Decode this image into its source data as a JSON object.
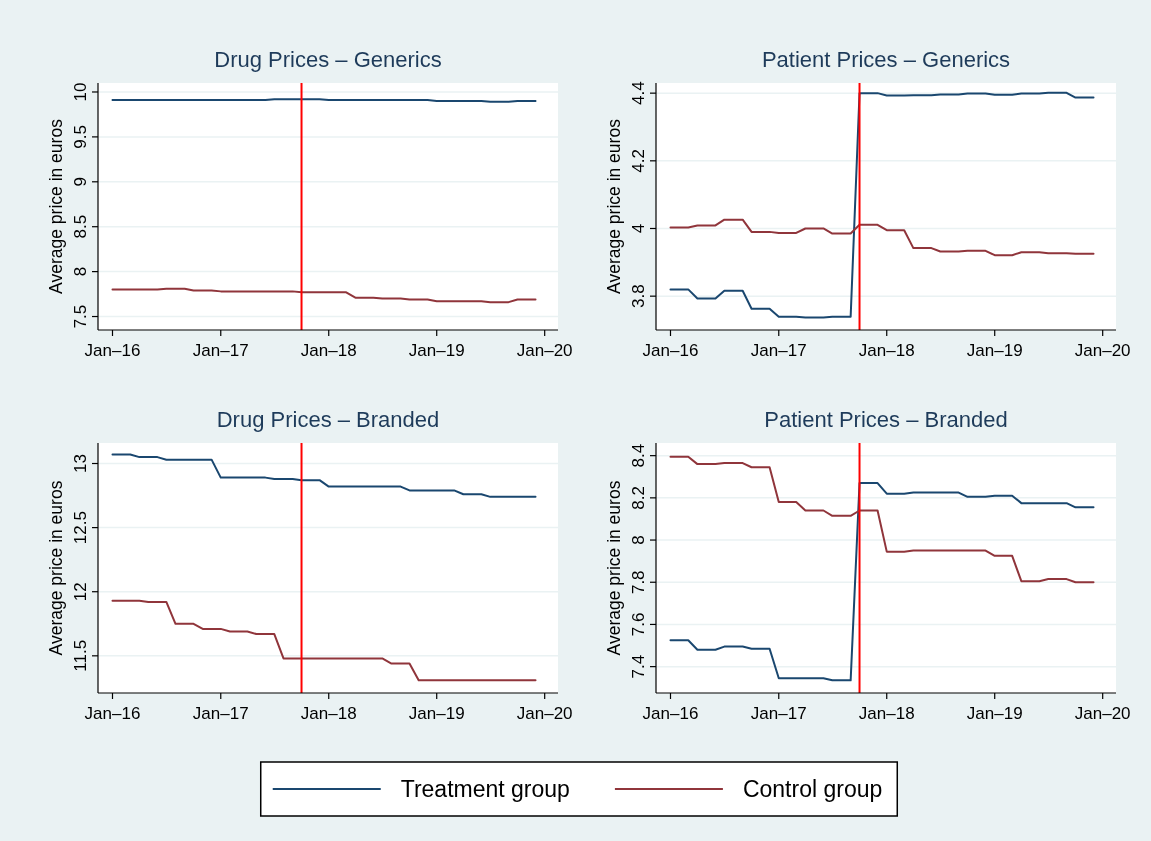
{
  "chart_data": [
    {
      "type": "line",
      "title": "Drug Prices – Generics",
      "ylabel": "Average price in euros",
      "x": [
        "2016-01",
        "2016-02",
        "2016-03",
        "2016-04",
        "2016-05",
        "2016-06",
        "2016-07",
        "2016-08",
        "2016-09",
        "2016-10",
        "2016-11",
        "2016-12",
        "2017-01",
        "2017-02",
        "2017-03",
        "2017-04",
        "2017-05",
        "2017-06",
        "2017-07",
        "2017-08",
        "2017-09",
        "2017-10",
        "2017-11",
        "2017-12",
        "2018-01",
        "2018-02",
        "2018-03",
        "2018-04",
        "2018-05",
        "2018-06",
        "2018-07",
        "2018-08",
        "2018-09",
        "2018-10",
        "2018-11",
        "2018-12",
        "2019-01",
        "2019-02",
        "2019-03",
        "2019-04",
        "2019-05",
        "2019-06",
        "2019-07",
        "2019-08",
        "2019-09",
        "2019-10",
        "2019-11",
        "2019-12"
      ],
      "series": [
        {
          "color": "#1a476f",
          "values": [
            9.91,
            9.91,
            9.91,
            9.91,
            9.91,
            9.91,
            9.91,
            9.91,
            9.91,
            9.91,
            9.91,
            9.91,
            9.91,
            9.91,
            9.91,
            9.91,
            9.91,
            9.91,
            9.92,
            9.92,
            9.92,
            9.92,
            9.92,
            9.92,
            9.91,
            9.91,
            9.91,
            9.91,
            9.91,
            9.91,
            9.91,
            9.91,
            9.91,
            9.91,
            9.91,
            9.91,
            9.9,
            9.9,
            9.9,
            9.9,
            9.9,
            9.9,
            9.89,
            9.89,
            9.89,
            9.9,
            9.9,
            9.9
          ]
        },
        {
          "color": "#90353b",
          "values": [
            7.8,
            7.8,
            7.8,
            7.8,
            7.8,
            7.8,
            7.81,
            7.81,
            7.81,
            7.79,
            7.79,
            7.79,
            7.78,
            7.78,
            7.78,
            7.78,
            7.78,
            7.78,
            7.78,
            7.78,
            7.78,
            7.77,
            7.77,
            7.77,
            7.77,
            7.77,
            7.77,
            7.71,
            7.71,
            7.71,
            7.7,
            7.7,
            7.7,
            7.69,
            7.69,
            7.69,
            7.67,
            7.67,
            7.67,
            7.67,
            7.67,
            7.67,
            7.66,
            7.66,
            7.66,
            7.69,
            7.69,
            7.69
          ]
        }
      ],
      "xlim": [
        "2015-11-13",
        "2020-02-15"
      ],
      "xticks": [
        {
          "value": "2016-01",
          "label": "Jan–16"
        },
        {
          "value": "2017-01",
          "label": "Jan–17"
        },
        {
          "value": "2018-01",
          "label": "Jan–18"
        },
        {
          "value": "2019-01",
          "label": "Jan–19"
        },
        {
          "value": "2020-01",
          "label": "Jan–20"
        }
      ],
      "ylim": [
        7.35,
        10.1
      ],
      "yticks": [
        7.5,
        8,
        8.5,
        9,
        9.5,
        10
      ],
      "grid": "y",
      "ref_lines": [
        {
          "axis": "x",
          "value": "2017-10",
          "color": "#ff0000"
        }
      ]
    },
    {
      "type": "line",
      "title": "Patient Prices – Generics",
      "ylabel": "Average price in euros",
      "x": [
        "2016-01",
        "2016-02",
        "2016-03",
        "2016-04",
        "2016-05",
        "2016-06",
        "2016-07",
        "2016-08",
        "2016-09",
        "2016-10",
        "2016-11",
        "2016-12",
        "2017-01",
        "2017-02",
        "2017-03",
        "2017-04",
        "2017-05",
        "2017-06",
        "2017-07",
        "2017-08",
        "2017-09",
        "2017-10",
        "2017-11",
        "2017-12",
        "2018-01",
        "2018-02",
        "2018-03",
        "2018-04",
        "2018-05",
        "2018-06",
        "2018-07",
        "2018-08",
        "2018-09",
        "2018-10",
        "2018-11",
        "2018-12",
        "2019-01",
        "2019-02",
        "2019-03",
        "2019-04",
        "2019-05",
        "2019-06",
        "2019-07",
        "2019-08",
        "2019-09",
        "2019-10",
        "2019-11",
        "2019-12"
      ],
      "series": [
        {
          "color": "#1a476f",
          "values": [
            3.82,
            3.82,
            3.82,
            3.793,
            3.793,
            3.793,
            3.816,
            3.816,
            3.816,
            3.763,
            3.763,
            3.763,
            3.739,
            3.739,
            3.739,
            3.737,
            3.737,
            3.737,
            3.739,
            3.739,
            3.739,
            4.4,
            4.4,
            4.4,
            4.393,
            4.393,
            4.393,
            4.394,
            4.394,
            4.394,
            4.396,
            4.396,
            4.396,
            4.399,
            4.399,
            4.399,
            4.395,
            4.395,
            4.395,
            4.399,
            4.399,
            4.399,
            4.401,
            4.401,
            4.401,
            4.387,
            4.387,
            4.387
          ]
        },
        {
          "color": "#90353b",
          "values": [
            4.003,
            4.003,
            4.003,
            4.009,
            4.009,
            4.009,
            4.026,
            4.026,
            4.026,
            3.99,
            3.99,
            3.99,
            3.987,
            3.987,
            3.987,
            4.0,
            4.0,
            4.0,
            3.985,
            3.985,
            3.985,
            4.011,
            4.011,
            4.011,
            3.995,
            3.995,
            3.995,
            3.942,
            3.942,
            3.942,
            3.932,
            3.932,
            3.932,
            3.934,
            3.934,
            3.934,
            3.921,
            3.921,
            3.921,
            3.93,
            3.93,
            3.93,
            3.927,
            3.927,
            3.927,
            3.925,
            3.925,
            3.925
          ]
        }
      ],
      "xlim": [
        "2015-11-13",
        "2020-02-15"
      ],
      "xticks": [
        {
          "value": "2016-01",
          "label": "Jan–16"
        },
        {
          "value": "2017-01",
          "label": "Jan–17"
        },
        {
          "value": "2018-01",
          "label": "Jan–18"
        },
        {
          "value": "2019-01",
          "label": "Jan–19"
        },
        {
          "value": "2020-01",
          "label": "Jan–20"
        }
      ],
      "ylim": [
        3.7,
        4.43
      ],
      "yticks": [
        3.8,
        4,
        4.2,
        4.4
      ],
      "grid": "y",
      "ref_lines": [
        {
          "axis": "x",
          "value": "2017-10",
          "color": "#ff0000"
        }
      ]
    },
    {
      "type": "line",
      "title": "Drug Prices – Branded",
      "ylabel": "Average price in euros",
      "x": [
        "2016-01",
        "2016-02",
        "2016-03",
        "2016-04",
        "2016-05",
        "2016-06",
        "2016-07",
        "2016-08",
        "2016-09",
        "2016-10",
        "2016-11",
        "2016-12",
        "2017-01",
        "2017-02",
        "2017-03",
        "2017-04",
        "2017-05",
        "2017-06",
        "2017-07",
        "2017-08",
        "2017-09",
        "2017-10",
        "2017-11",
        "2017-12",
        "2018-01",
        "2018-02",
        "2018-03",
        "2018-04",
        "2018-05",
        "2018-06",
        "2018-07",
        "2018-08",
        "2018-09",
        "2018-10",
        "2018-11",
        "2018-12",
        "2019-01",
        "2019-02",
        "2019-03",
        "2019-04",
        "2019-05",
        "2019-06",
        "2019-07",
        "2019-08",
        "2019-09",
        "2019-10",
        "2019-11",
        "2019-12"
      ],
      "series": [
        {
          "color": "#1a476f",
          "values": [
            13.07,
            13.07,
            13.07,
            13.05,
            13.05,
            13.05,
            13.03,
            13.03,
            13.03,
            13.03,
            13.03,
            13.03,
            12.89,
            12.89,
            12.89,
            12.89,
            12.89,
            12.89,
            12.88,
            12.88,
            12.88,
            12.87,
            12.87,
            12.87,
            12.82,
            12.82,
            12.82,
            12.82,
            12.82,
            12.82,
            12.82,
            12.82,
            12.82,
            12.79,
            12.79,
            12.79,
            12.79,
            12.79,
            12.79,
            12.76,
            12.76,
            12.76,
            12.74,
            12.74,
            12.74,
            12.74,
            12.74,
            12.74
          ]
        },
        {
          "color": "#90353b",
          "values": [
            11.93,
            11.93,
            11.93,
            11.93,
            11.92,
            11.92,
            11.92,
            11.75,
            11.75,
            11.75,
            11.71,
            11.71,
            11.71,
            11.69,
            11.69,
            11.69,
            11.67,
            11.67,
            11.67,
            11.48,
            11.48,
            11.48,
            11.48,
            11.48,
            11.48,
            11.48,
            11.48,
            11.48,
            11.48,
            11.48,
            11.48,
            11.44,
            11.44,
            11.44,
            11.31,
            11.31,
            11.31,
            11.31,
            11.31,
            11.31,
            11.31,
            11.31,
            11.31,
            11.31,
            11.31,
            11.31,
            11.31,
            11.31
          ]
        }
      ],
      "xlim": [
        "2015-11-13",
        "2020-02-15"
      ],
      "xticks": [
        {
          "value": "2016-01",
          "label": "Jan–16"
        },
        {
          "value": "2017-01",
          "label": "Jan–17"
        },
        {
          "value": "2018-01",
          "label": "Jan–18"
        },
        {
          "value": "2019-01",
          "label": "Jan–19"
        },
        {
          "value": "2020-01",
          "label": "Jan–20"
        }
      ],
      "ylim": [
        11.21,
        13.16
      ],
      "yticks": [
        11.5,
        12,
        12.5,
        13
      ],
      "grid": "y",
      "ref_lines": [
        {
          "axis": "x",
          "value": "2017-10",
          "color": "#ff0000"
        }
      ]
    },
    {
      "type": "line",
      "title": "Patient Prices – Branded",
      "ylabel": "Average price in euros",
      "x": [
        "2016-01",
        "2016-02",
        "2016-03",
        "2016-04",
        "2016-05",
        "2016-06",
        "2016-07",
        "2016-08",
        "2016-09",
        "2016-10",
        "2016-11",
        "2016-12",
        "2017-01",
        "2017-02",
        "2017-03",
        "2017-04",
        "2017-05",
        "2017-06",
        "2017-07",
        "2017-08",
        "2017-09",
        "2017-10",
        "2017-11",
        "2017-12",
        "2018-01",
        "2018-02",
        "2018-03",
        "2018-04",
        "2018-05",
        "2018-06",
        "2018-07",
        "2018-08",
        "2018-09",
        "2018-10",
        "2018-11",
        "2018-12",
        "2019-01",
        "2019-02",
        "2019-03",
        "2019-04",
        "2019-05",
        "2019-06",
        "2019-07",
        "2019-08",
        "2019-09",
        "2019-10",
        "2019-11",
        "2019-12"
      ],
      "series": [
        {
          "name": "Treatment group",
          "color": "#1a476f",
          "values": [
            7.525,
            7.525,
            7.525,
            7.48,
            7.48,
            7.48,
            7.495,
            7.495,
            7.495,
            7.485,
            7.485,
            7.485,
            7.345,
            7.345,
            7.345,
            7.345,
            7.345,
            7.345,
            7.335,
            7.335,
            7.335,
            8.27,
            8.27,
            8.27,
            8.22,
            8.22,
            8.22,
            8.225,
            8.225,
            8.225,
            8.225,
            8.225,
            8.225,
            8.205,
            8.205,
            8.205,
            8.21,
            8.21,
            8.21,
            8.175,
            8.175,
            8.175,
            8.175,
            8.175,
            8.175,
            8.155,
            8.155,
            8.155
          ]
        },
        {
          "name": "Control group",
          "color": "#90353b",
          "values": [
            8.395,
            8.395,
            8.395,
            8.36,
            8.36,
            8.36,
            8.365,
            8.365,
            8.365,
            8.345,
            8.345,
            8.345,
            8.18,
            8.18,
            8.18,
            8.14,
            8.14,
            8.14,
            8.115,
            8.115,
            8.115,
            8.14,
            8.14,
            8.14,
            7.945,
            7.945,
            7.945,
            7.95,
            7.95,
            7.95,
            7.95,
            7.95,
            7.95,
            7.95,
            7.95,
            7.95,
            7.925,
            7.925,
            7.925,
            7.805,
            7.805,
            7.805,
            7.815,
            7.815,
            7.815,
            7.8,
            7.8,
            7.8
          ]
        }
      ],
      "xlim": [
        "2015-11-13",
        "2020-02-15"
      ],
      "xticks": [
        {
          "value": "2016-01",
          "label": "Jan–16"
        },
        {
          "value": "2017-01",
          "label": "Jan–17"
        },
        {
          "value": "2018-01",
          "label": "Jan–18"
        },
        {
          "value": "2019-01",
          "label": "Jan–19"
        },
        {
          "value": "2020-01",
          "label": "Jan–20"
        }
      ],
      "ylim": [
        7.275,
        8.46
      ],
      "yticks": [
        7.4,
        7.6,
        7.8,
        8,
        8.2,
        8.4
      ],
      "grid": "y",
      "legend": "bottom",
      "ref_lines": [
        {
          "axis": "x",
          "value": "2017-10",
          "color": "#ff0000"
        }
      ]
    }
  ]
}
